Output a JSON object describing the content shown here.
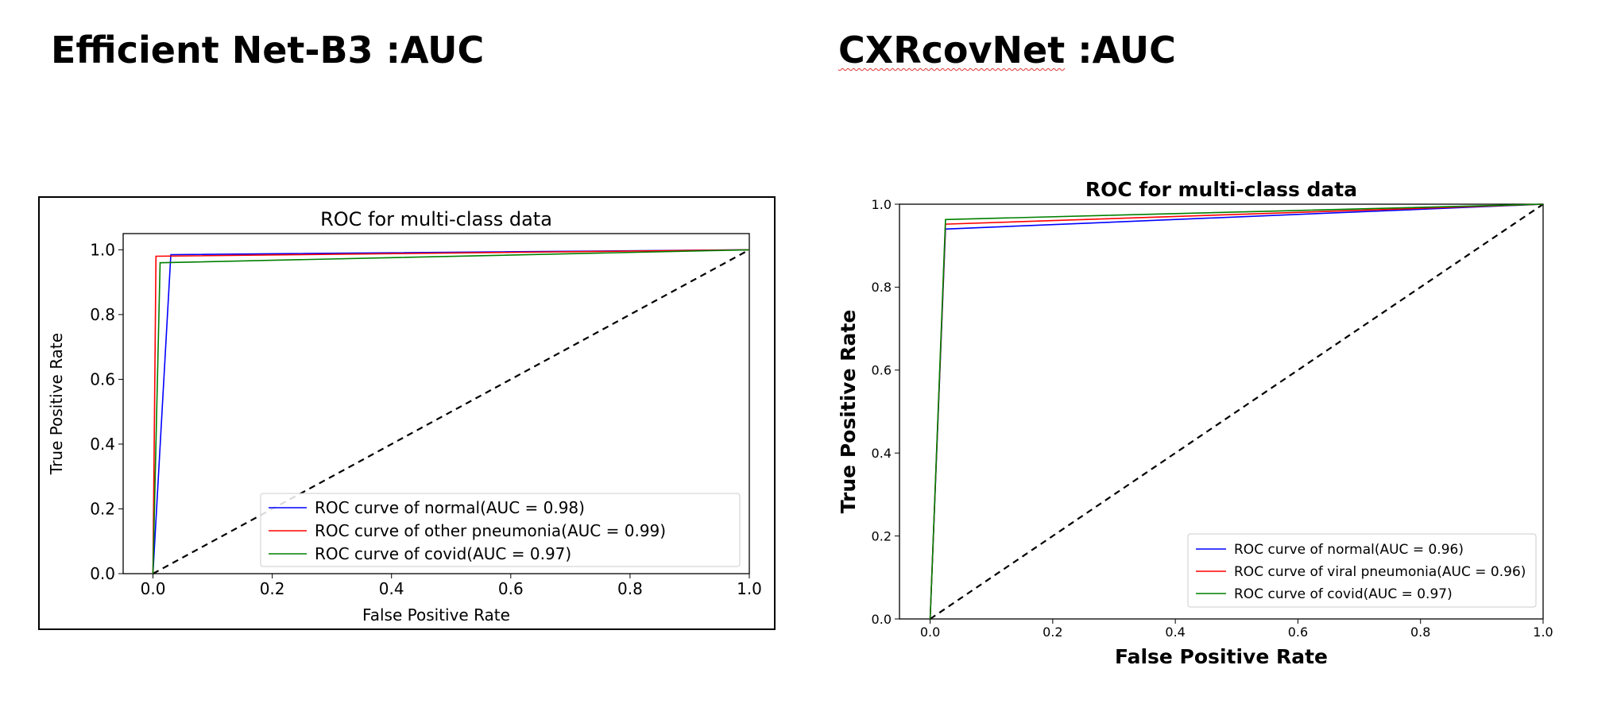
{
  "headings": {
    "left": "Efficient Net-B3 :AUC",
    "right_word": "CXRcovNet",
    "right_suffix": " :AUC"
  },
  "chart_data": [
    {
      "type": "line",
      "title": "ROC for multi-class data",
      "xlabel": "False Positive Rate",
      "ylabel": "True Positive Rate",
      "xlim": [
        -0.05,
        1.0
      ],
      "ylim": [
        0.0,
        1.05
      ],
      "xticks": [
        "0.0",
        "0.2",
        "0.4",
        "0.6",
        "0.8",
        "1.0"
      ],
      "yticks": [
        "0.0",
        "0.2",
        "0.4",
        "0.6",
        "0.8",
        "1.0"
      ],
      "legend_position": "lower-right",
      "series": [
        {
          "name": "ROC curve of normal(AUC = 0.98)",
          "color": "#0000ff",
          "x": [
            0.0,
            0.03,
            1.0
          ],
          "y": [
            0.0,
            0.985,
            1.0
          ]
        },
        {
          "name": "ROC curve of other pneumonia(AUC = 0.99)",
          "color": "#ff0000",
          "x": [
            0.0,
            0.005,
            1.0
          ],
          "y": [
            0.0,
            0.98,
            1.0
          ]
        },
        {
          "name": "ROC curve of covid(AUC = 0.97)",
          "color": "#008000",
          "x": [
            0.0,
            0.012,
            1.0
          ],
          "y": [
            0.0,
            0.96,
            1.0
          ]
        }
      ],
      "diagonal": {
        "x": [
          0.0,
          1.0
        ],
        "y": [
          0.0,
          1.0
        ],
        "color": "#000000",
        "style": "dashed"
      }
    },
    {
      "type": "line",
      "title": "ROC for multi-class data",
      "xlabel": "False Positive Rate",
      "ylabel": "True Positive Rate",
      "xlim": [
        -0.05,
        1.0
      ],
      "ylim": [
        0.0,
        1.0
      ],
      "xticks": [
        "0.0",
        "0.2",
        "0.4",
        "0.6",
        "0.8",
        "1.0"
      ],
      "yticks": [
        "0.0",
        "0.2",
        "0.4",
        "0.6",
        "0.8",
        "1.0"
      ],
      "legend_position": "lower-right",
      "series": [
        {
          "name": "ROC curve of normal(AUC = 0.96)",
          "color": "#0000ff",
          "x": [
            0.0,
            0.025,
            1.0
          ],
          "y": [
            0.0,
            0.94,
            1.0
          ]
        },
        {
          "name": "ROC curve of viral pneumonia(AUC = 0.96)",
          "color": "#ff0000",
          "x": [
            0.0,
            0.025,
            1.0
          ],
          "y": [
            0.0,
            0.952,
            1.0
          ]
        },
        {
          "name": "ROC curve of covid(AUC = 0.97)",
          "color": "#008000",
          "x": [
            0.0,
            0.025,
            1.0
          ],
          "y": [
            0.0,
            0.963,
            1.0
          ]
        }
      ],
      "diagonal": {
        "x": [
          0.0,
          1.0
        ],
        "y": [
          0.0,
          1.0
        ],
        "color": "#000000",
        "style": "dashed"
      }
    }
  ]
}
